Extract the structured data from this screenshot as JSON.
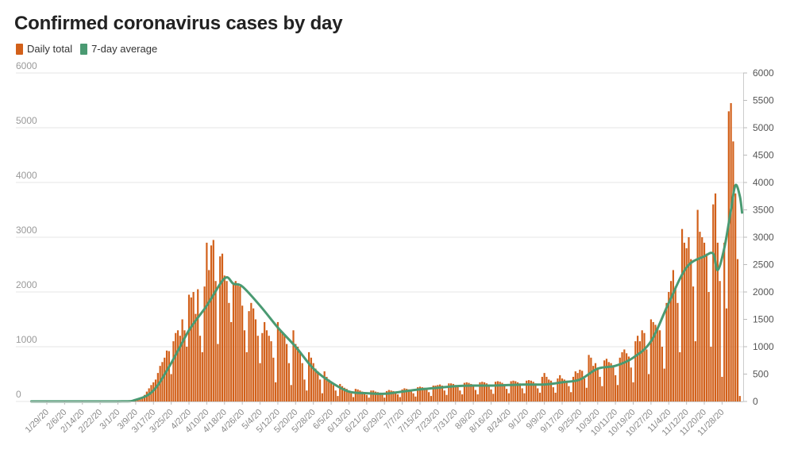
{
  "chart_data": {
    "type": "bar",
    "title": "Confirmed coronavirus cases by day",
    "legend_position": "top-left",
    "series": [
      {
        "name": "Daily total",
        "kind": "bar",
        "color": "#d2601a"
      },
      {
        "name": "7-day average",
        "kind": "line",
        "color": "#4a9a72"
      }
    ],
    "y_left": {
      "min": 0,
      "max": 6000,
      "ticks": [
        0,
        1000,
        2000,
        3000,
        4000,
        5000,
        6000
      ]
    },
    "y_right": {
      "min": 0,
      "max": 6000,
      "ticks": [
        0,
        500,
        1000,
        1500,
        2000,
        2500,
        3000,
        3500,
        4000,
        4500,
        5000,
        5500,
        6000
      ]
    },
    "x": {
      "start_date": "1/22/20",
      "end_date": "12/7/20",
      "tick_labels": [
        "1/29/20",
        "2/6/20",
        "2/14/20",
        "2/22/20",
        "3/1/20",
        "3/9/20",
        "3/17/20",
        "3/25/20",
        "4/2/20",
        "4/10/20",
        "4/18/20",
        "4/26/20",
        "5/4/20",
        "5/12/20",
        "5/20/20",
        "5/28/20",
        "6/5/20",
        "6/13/20",
        "6/21/20",
        "6/29/20",
        "7/7/20",
        "7/15/20",
        "7/23/20",
        "7/31/20",
        "8/8/20",
        "8/16/20",
        "8/24/20",
        "9/1/20",
        "9/9/20",
        "9/17/20",
        "9/25/20",
        "10/3/20",
        "10/11/20",
        "10/19/20",
        "10/27/20",
        "11/4/20",
        "11/12/20",
        "11/20/20",
        "11/28/20"
      ]
    },
    "grid": true,
    "daily_total_weekly_profile": [
      {
        "week_starting": "1/22/20",
        "values": [
          0,
          0,
          0,
          0,
          0,
          0,
          0
        ]
      },
      {
        "week_starting": "1/29/20",
        "values": [
          0,
          0,
          0,
          0,
          0,
          0,
          0
        ]
      },
      {
        "week_starting": "2/5/20",
        "values": [
          0,
          0,
          0,
          0,
          0,
          0,
          0
        ]
      },
      {
        "week_starting": "2/12/20",
        "values": [
          0,
          0,
          0,
          0,
          0,
          0,
          0
        ]
      },
      {
        "week_starting": "2/19/20",
        "values": [
          0,
          0,
          0,
          0,
          0,
          0,
          0
        ]
      },
      {
        "week_starting": "2/26/20",
        "values": [
          0,
          0,
          0,
          0,
          0,
          0,
          0
        ]
      },
      {
        "week_starting": "3/4/20",
        "values": [
          0,
          0,
          0,
          10,
          20,
          40,
          40
        ]
      },
      {
        "week_starting": "3/11/20",
        "values": [
          60,
          80,
          120,
          180,
          240,
          300,
          350
        ]
      },
      {
        "week_starting": "3/18/20",
        "values": [
          400,
          520,
          650,
          720,
          800,
          930,
          920
        ]
      },
      {
        "week_starting": "3/25/20",
        "values": [
          500,
          1100,
          1250,
          1300,
          1200,
          1500,
          1300
        ]
      },
      {
        "week_starting": "4/1/20",
        "values": [
          1000,
          1950,
          1900,
          2000,
          1600,
          2050,
          1200
        ]
      },
      {
        "week_starting": "4/8/20",
        "values": [
          900,
          2100,
          2900,
          2400,
          2850,
          2950,
          2200
        ]
      },
      {
        "week_starting": "4/15/20",
        "values": [
          1050,
          2650,
          2700,
          2300,
          2200,
          1800,
          1450
        ]
      },
      {
        "week_starting": "4/22/20",
        "values": [
          2150,
          2200,
          2150,
          2100,
          1750,
          1300,
          900
        ]
      },
      {
        "week_starting": "4/29/20",
        "values": [
          1650,
          1800,
          1700,
          1500,
          1200,
          700,
          1250
        ]
      },
      {
        "week_starting": "5/6/20",
        "values": [
          1450,
          1300,
          1200,
          1100,
          800,
          350,
          1450
        ]
      },
      {
        "week_starting": "5/13/20",
        "values": [
          1300,
          1250,
          1200,
          1050,
          700,
          300,
          1300
        ]
      },
      {
        "week_starting": "5/20/20",
        "values": [
          1050,
          1000,
          900,
          700,
          400,
          200,
          900
        ]
      },
      {
        "week_starting": "5/27/20",
        "values": [
          800,
          700,
          600,
          550,
          400,
          150,
          550
        ]
      },
      {
        "week_starting": "6/3/20",
        "values": [
          450,
          400,
          350,
          300,
          200,
          100,
          320
        ]
      },
      {
        "week_starting": "6/10/20",
        "values": [
          280,
          250,
          230,
          200,
          150,
          80,
          230
        ]
      },
      {
        "week_starting": "6/17/20",
        "values": [
          220,
          200,
          180,
          170,
          120,
          70,
          200
        ]
      },
      {
        "week_starting": "6/24/20",
        "values": [
          200,
          180,
          170,
          160,
          120,
          70,
          190
        ]
      },
      {
        "week_starting": "7/1/20",
        "values": [
          210,
          200,
          190,
          180,
          130,
          80,
          220
        ]
      },
      {
        "week_starting": "7/8/20",
        "values": [
          240,
          230,
          220,
          210,
          150,
          90,
          260
        ]
      },
      {
        "week_starting": "7/15/20",
        "values": [
          270,
          260,
          250,
          240,
          170,
          100,
          290
        ]
      },
      {
        "week_starting": "7/22/20",
        "values": [
          290,
          300,
          310,
          290,
          200,
          120,
          330
        ]
      },
      {
        "week_starting": "7/29/20",
        "values": [
          330,
          320,
          300,
          290,
          200,
          130,
          340
        ]
      },
      {
        "week_starting": "8/5/20",
        "values": [
          350,
          340,
          320,
          300,
          210,
          130,
          350
        ]
      },
      {
        "week_starting": "8/12/20",
        "values": [
          360,
          350,
          330,
          310,
          220,
          140,
          360
        ]
      },
      {
        "week_starting": "8/19/20",
        "values": [
          370,
          360,
          340,
          320,
          230,
          150,
          370
        ]
      },
      {
        "week_starting": "8/26/20",
        "values": [
          380,
          370,
          350,
          330,
          240,
          150,
          380
        ]
      },
      {
        "week_starting": "9/2/20",
        "values": [
          390,
          380,
          360,
          330,
          240,
          160,
          450
        ]
      },
      {
        "week_starting": "9/9/20",
        "values": [
          520,
          450,
          400,
          380,
          260,
          160,
          420
        ]
      },
      {
        "week_starting": "9/16/20",
        "values": [
          480,
          420,
          400,
          380,
          280,
          170,
          450
        ]
      },
      {
        "week_starting": "9/23/20",
        "values": [
          550,
          520,
          580,
          560,
          420,
          250,
          850
        ]
      },
      {
        "week_starting": "9/30/20",
        "values": [
          800,
          650,
          700,
          620,
          450,
          280,
          750
        ]
      },
      {
        "week_starting": "10/7/20",
        "values": [
          780,
          720,
          700,
          650,
          480,
          300,
          800
        ]
      },
      {
        "week_starting": "10/14/20",
        "values": [
          900,
          950,
          880,
          820,
          620,
          350,
          1100
        ]
      },
      {
        "week_starting": "10/21/20",
        "values": [
          1200,
          1100,
          1300,
          1250,
          950,
          500,
          1500
        ]
      },
      {
        "week_starting": "10/28/20",
        "values": [
          1450,
          1400,
          1350,
          1300,
          1000,
          600,
          1800
        ]
      },
      {
        "week_starting": "11/4/20",
        "values": [
          2000,
          2200,
          2400,
          2100,
          1800,
          900,
          3150
        ]
      },
      {
        "week_starting": "11/11/20",
        "values": [
          2900,
          2800,
          3000,
          2600,
          2100,
          1100,
          3500
        ]
      },
      {
        "week_starting": "11/18/20",
        "values": [
          3100,
          3000,
          2900,
          2700,
          2000,
          1000,
          3600
        ]
      },
      {
        "week_starting": "11/25/20",
        "values": [
          3800,
          2900,
          2200,
          450,
          2900,
          1700,
          5300
        ]
      },
      {
        "week_starting": "12/2/20",
        "values": [
          5450,
          4750,
          3800,
          2600,
          100,
          0,
          0
        ]
      }
    ],
    "seven_day_average_points": [
      {
        "date": "1/22/20",
        "value": 0
      },
      {
        "date": "3/1/20",
        "value": 0
      },
      {
        "date": "3/9/20",
        "value": 30
      },
      {
        "date": "3/17/20",
        "value": 200
      },
      {
        "date": "3/25/20",
        "value": 700
      },
      {
        "date": "4/2/20",
        "value": 1300
      },
      {
        "date": "4/10/20",
        "value": 1750
      },
      {
        "date": "4/18/20",
        "value": 2250
      },
      {
        "date": "4/22/20",
        "value": 2150
      },
      {
        "date": "4/26/20",
        "value": 2100
      },
      {
        "date": "5/4/20",
        "value": 1750
      },
      {
        "date": "5/12/20",
        "value": 1350
      },
      {
        "date": "5/20/20",
        "value": 1000
      },
      {
        "date": "5/28/20",
        "value": 600
      },
      {
        "date": "6/5/20",
        "value": 350
      },
      {
        "date": "6/13/20",
        "value": 180
      },
      {
        "date": "6/21/20",
        "value": 150
      },
      {
        "date": "6/29/20",
        "value": 140
      },
      {
        "date": "7/7/20",
        "value": 180
      },
      {
        "date": "7/15/20",
        "value": 220
      },
      {
        "date": "7/23/20",
        "value": 250
      },
      {
        "date": "7/31/20",
        "value": 280
      },
      {
        "date": "8/8/20",
        "value": 290
      },
      {
        "date": "8/16/20",
        "value": 290
      },
      {
        "date": "8/24/20",
        "value": 300
      },
      {
        "date": "9/1/20",
        "value": 310
      },
      {
        "date": "9/9/20",
        "value": 310
      },
      {
        "date": "9/17/20",
        "value": 350
      },
      {
        "date": "9/25/20",
        "value": 400
      },
      {
        "date": "10/3/20",
        "value": 600
      },
      {
        "date": "10/11/20",
        "value": 650
      },
      {
        "date": "10/19/20",
        "value": 800
      },
      {
        "date": "10/27/20",
        "value": 1100
      },
      {
        "date": "11/4/20",
        "value": 1800
      },
      {
        "date": "11/12/20",
        "value": 2450
      },
      {
        "date": "11/20/20",
        "value": 2650
      },
      {
        "date": "11/24/20",
        "value": 2700
      },
      {
        "date": "11/26/20",
        "value": 2400
      },
      {
        "date": "11/29/20",
        "value": 2800
      },
      {
        "date": "12/2/20",
        "value": 3500
      },
      {
        "date": "12/4/20",
        "value": 3950
      },
      {
        "date": "12/6/20",
        "value": 3750
      },
      {
        "date": "12/7/20",
        "value": 3450
      }
    ]
  }
}
